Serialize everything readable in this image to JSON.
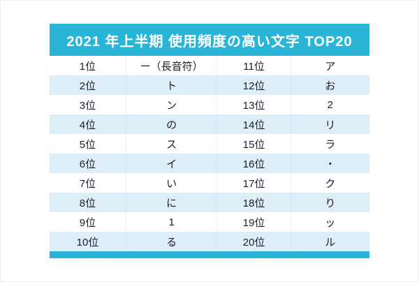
{
  "colors": {
    "header_band": "#2ab5d7",
    "alt_row": "#ddeef9",
    "text": "#1c1c30"
  },
  "chart_data": {
    "type": "table",
    "title": "2021 年上半期 使用頻度の高い文字 TOP20",
    "rows": [
      [
        "1位",
        "ー（長音符）",
        "11位",
        "ア"
      ],
      [
        "2位",
        "ト",
        "12位",
        "お"
      ],
      [
        "3位",
        "ン",
        "13位",
        "2"
      ],
      [
        "4位",
        "の",
        "14位",
        "リ"
      ],
      [
        "5位",
        "ス",
        "15位",
        "ラ"
      ],
      [
        "6位",
        "イ",
        "16位",
        "・"
      ],
      [
        "7位",
        "い",
        "17位",
        "ク"
      ],
      [
        "8位",
        "に",
        "18位",
        "り"
      ],
      [
        "9位",
        "1",
        "19位",
        "ッ"
      ],
      [
        "10位",
        "る",
        "20位",
        "ル"
      ]
    ]
  }
}
